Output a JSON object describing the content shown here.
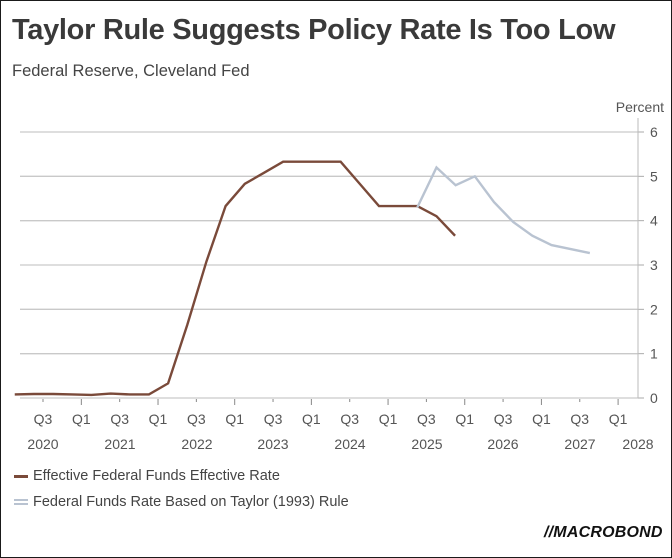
{
  "header": {
    "title": "Taylor Rule Suggests Policy Rate Is Too Low",
    "subtitle": "Federal Reserve, Cleveland Fed"
  },
  "legend": {
    "items": [
      {
        "label": "Effective Federal Funds Effective Rate",
        "color": "#7a4a3a"
      },
      {
        "label": "Federal Funds Rate Based on Taylor (1993) Rule",
        "color": "#b9c3d1"
      }
    ]
  },
  "logo": {
    "text": "MACROBOND",
    "mark": "//"
  },
  "chart_data": {
    "type": "line",
    "title": "Taylor Rule Suggests Policy Rate Is Too Low",
    "subtitle": "Federal Reserve, Cleveland Fed",
    "xlabel": "",
    "ylabel": "Percent",
    "ylim": [
      0,
      6
    ],
    "yticks": [
      0,
      1,
      2,
      3,
      4,
      5,
      6
    ],
    "grid": true,
    "y_axis_side": "right",
    "legend_position": "bottom-left",
    "x_ticks": [
      {
        "q": "Q3",
        "year": "2020"
      },
      {
        "q": "Q1",
        "year": "2021"
      },
      {
        "q": "Q3",
        "year": ""
      },
      {
        "q": "Q1",
        "year": "2022"
      },
      {
        "q": "Q3",
        "year": ""
      },
      {
        "q": "Q1",
        "year": "2023"
      },
      {
        "q": "Q3",
        "year": ""
      },
      {
        "q": "Q1",
        "year": "2024"
      },
      {
        "q": "Q3",
        "year": ""
      },
      {
        "q": "Q1",
        "year": "2025"
      },
      {
        "q": "Q3",
        "year": ""
      },
      {
        "q": "Q1",
        "year": "2026"
      },
      {
        "q": "Q3",
        "year": ""
      },
      {
        "q": "Q1",
        "year": "2027"
      },
      {
        "q": "Q3",
        "year": ""
      },
      {
        "q": "Q1",
        "year": "2028"
      }
    ],
    "year_labels": [
      "2020",
      "2021",
      "2022",
      "2023",
      "2024",
      "2025",
      "2026",
      "2027",
      "2028"
    ],
    "series": [
      {
        "name": "Effective Federal Funds Effective Rate",
        "color": "#7a4a3a",
        "x": [
          "2020Q2",
          "2020Q3",
          "2020Q4",
          "2021Q1",
          "2021Q2",
          "2021Q3",
          "2021Q4",
          "2022Q1",
          "2022Q2",
          "2022Q3",
          "2022Q4",
          "2023Q1",
          "2023Q2",
          "2023Q3",
          "2023Q4",
          "2024Q1",
          "2024Q2",
          "2024Q3",
          "2024Q4",
          "2025Q1",
          "2025Q2",
          "2025Q3",
          "2025Q4"
        ],
        "values": [
          0.08,
          0.09,
          0.09,
          0.08,
          0.07,
          0.1,
          0.08,
          0.08,
          0.33,
          1.65,
          3.08,
          4.33,
          4.83,
          5.08,
          5.33,
          5.33,
          5.33,
          5.33,
          4.83,
          4.33,
          4.33,
          4.33,
          4.1
        ]
      },
      {
        "name": "Federal Funds Rate Based on Taylor (1993) Rule",
        "color": "#b9c3d1",
        "x": [
          "2025Q3",
          "2025Q4",
          "2026Q1",
          "2026Q2",
          "2026Q3",
          "2026Q4",
          "2027Q1",
          "2027Q2",
          "2027Q3",
          "2027Q4"
        ],
        "values": [
          4.3,
          5.2,
          4.8,
          5.0,
          4.42,
          3.97,
          3.66,
          3.45,
          3.36,
          3.27
        ]
      }
    ],
    "series_ext": {
      "note": "EFFR last visible point",
      "x": "2026Q1",
      "value": 3.66
    }
  }
}
